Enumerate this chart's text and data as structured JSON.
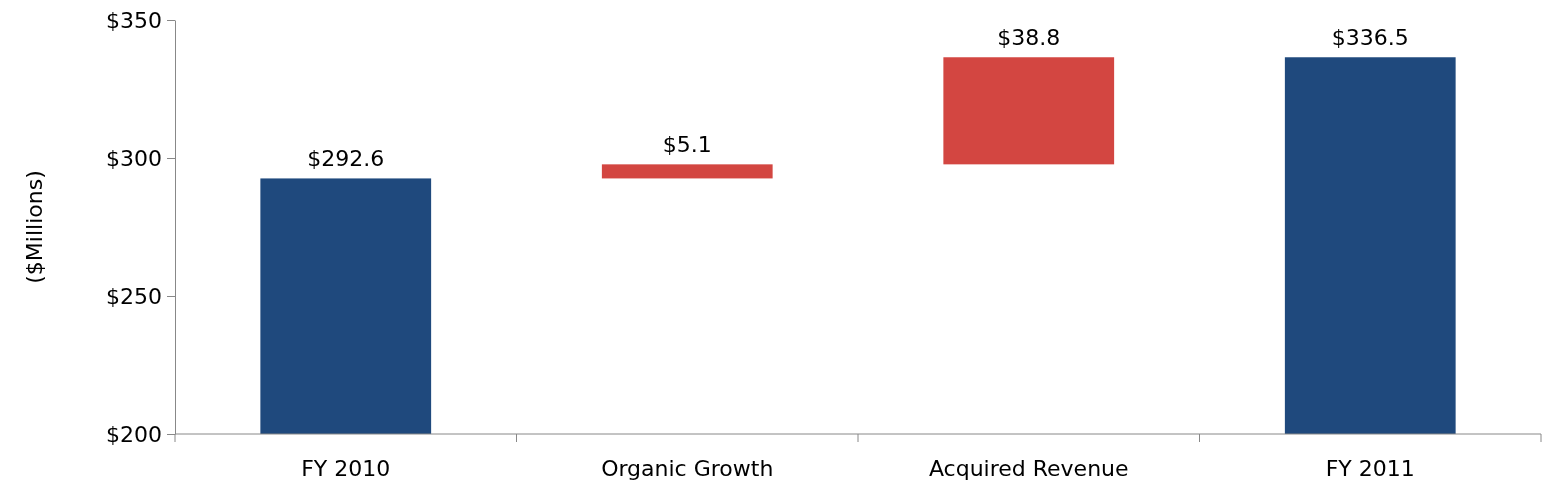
{
  "chart_data": {
    "type": "bar",
    "ylabel": "($Millions)",
    "categories": [
      "FY 2010",
      "Organic Growth",
      "Acquired Revenue",
      "FY 2011"
    ],
    "values": [
      92.6,
      5.1,
      38.8,
      136.5
    ],
    "base": [
      200,
      292.6,
      297.7,
      200
    ],
    "colors": [
      "#1f497d",
      "#d34641",
      "#d34641",
      "#1f497d"
    ],
    "value_labels": [
      "$292.6",
      "$5.1",
      "$38.8",
      "$336.5"
    ],
    "ylim": [
      200,
      350
    ],
    "yticks": [
      {
        "value": 200,
        "label": "$200"
      },
      {
        "value": 250,
        "label": "$250"
      },
      {
        "value": 300,
        "label": "$300"
      },
      {
        "value": 350,
        "label": "$350"
      }
    ],
    "grid": false
  }
}
